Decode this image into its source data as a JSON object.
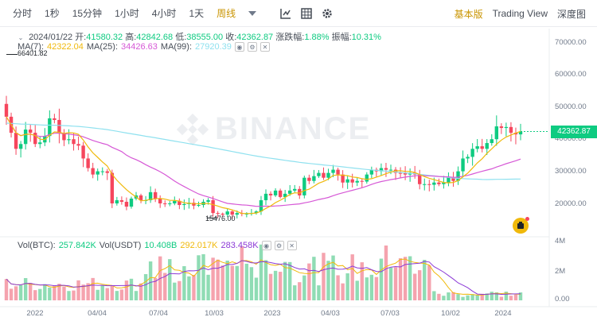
{
  "toolbar": {
    "intervals": [
      "分时",
      "1秒",
      "15分钟",
      "1小时",
      "4小时",
      "1天",
      "周线"
    ],
    "active_interval": "周线",
    "views": [
      "基本版",
      "Trading View",
      "深度图"
    ],
    "active_view": "基本版"
  },
  "ohlc": {
    "date": "2024/01/22",
    "open_label": "开:",
    "open": "41580.32",
    "high_label": "高:",
    "high": "42842.68",
    "low_label": "低:",
    "low": "38555.00",
    "close_label": "收:",
    "close": "42362.87",
    "change_label": "涨跌幅:",
    "change": "1.88%",
    "amp_label": "振幅:",
    "amp": "10.31%"
  },
  "ma": {
    "ma7_label": "MA(7):",
    "ma7": "42322.04",
    "ma25_label": "MA(25):",
    "ma25": "34426.63",
    "ma99_label": "MA(99):",
    "ma99": "27920.39"
  },
  "vol": {
    "vol_btc_label": "Vol(BTC):",
    "vol_btc": "257.842K",
    "vol_usdt_label": "Vol(USDT)",
    "vol_usdt": "10.408B",
    "v2": "292.017K",
    "v3": "283.458K"
  },
  "price_axis": [
    "70000.00",
    "60000.00",
    "50000.00",
    "40000.00",
    "30000.00",
    "20000.00"
  ],
  "vol_axis": [
    "4M",
    "2M",
    "0.00"
  ],
  "time_axis": [
    "2022",
    "04/04",
    "07/04",
    "10/03",
    "2023",
    "04/03",
    "07/03",
    "10/02",
    "2024"
  ],
  "current_price": "42362.87",
  "high_marker": "66401.82",
  "low_marker": "15476.00",
  "watermark": "BINANCE",
  "colors": {
    "up": "#0ecb81",
    "down": "#f6465d",
    "ma7": "#f0b90b",
    "ma25": "#d658d6",
    "ma99": "#8fe1ef",
    "accent": "#c99400"
  },
  "chart_data": {
    "type": "candlestick",
    "interval": "weekly",
    "close_series": [
      47000,
      42000,
      37000,
      38500,
      43000,
      42000,
      38500,
      39000,
      41000,
      46500,
      46000,
      42000,
      39700,
      40000,
      38500,
      38000,
      34000,
      31000,
      29000,
      30000,
      30000,
      29500,
      20000,
      21000,
      20500,
      19000,
      21500,
      22500,
      21000,
      21000,
      23500,
      21500,
      20000,
      19800,
      20000,
      20800,
      19500,
      19800,
      20200,
      19300,
      19500,
      20500,
      21000,
      17000,
      16800,
      16500,
      17500,
      16500,
      17000,
      16800,
      16800,
      17000,
      17500,
      21000,
      23000,
      22500,
      24000,
      22000,
      23000,
      24000,
      24500,
      22500,
      28000,
      27000,
      28500,
      29500,
      28000,
      29500,
      30500,
      29000,
      26500,
      27500,
      26500,
      27000,
      26800,
      29000,
      30500,
      30000,
      31000,
      30500,
      30500,
      29500,
      29400,
      29000,
      29500,
      29000,
      26000,
      26000,
      25800,
      26500,
      26000,
      26500,
      28000,
      27000,
      30000,
      34000,
      34500,
      37000,
      37800,
      37000,
      38800,
      40000,
      44000,
      43500,
      43800,
      42000,
      41500,
      42400
    ],
    "open_first": 51000,
    "ma7_last": 42322.04,
    "ma25_last": 34426.63,
    "ma99_last": 27920.39,
    "y_range": [
      10000,
      75000
    ],
    "extremes": {
      "high": 66401.82,
      "low": 15476.0
    }
  }
}
